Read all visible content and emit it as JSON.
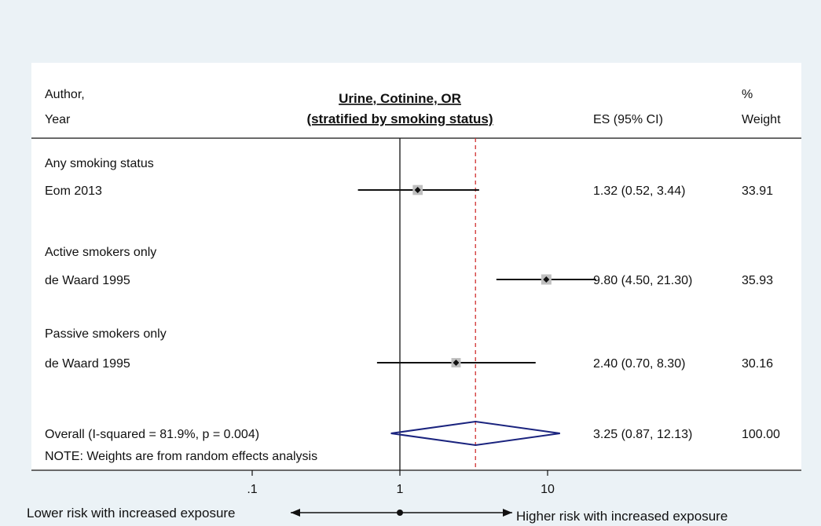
{
  "header": {
    "col1_line1": "Author,",
    "col1_line2": "Year",
    "title_line1": "Urine, Cotinine, OR",
    "title_line2": "(stratified by smoking status)",
    "es_header": "ES (95% CI)",
    "weight_line1": "%",
    "weight_line2": "Weight"
  },
  "footer": {
    "note": "NOTE: Weights are from random effects analysis",
    "lower_label": "Lower risk with increased exposure",
    "higher_label": "Higher risk with increased exposure"
  },
  "colors": {
    "diamond": "#1a237e",
    "reference_line": "#d03030",
    "ink": "#111111",
    "box": "#bfbfbf",
    "background": "#ebf2f6",
    "panel": "#ffffff"
  },
  "chart_data": {
    "type": "forest",
    "scale": "log",
    "xticks": [
      {
        "value": 0.1,
        "label": ".1"
      },
      {
        "value": 1,
        "label": "1"
      },
      {
        "value": 10,
        "label": "10"
      }
    ],
    "null_line": 1,
    "overall_line": 3.25,
    "rows": [
      {
        "kind": "subgroup",
        "label": "Any smoking status"
      },
      {
        "kind": "study",
        "label": "Eom 2013",
        "es": 1.32,
        "lo": 0.52,
        "hi": 3.44,
        "es_text": "1.32 (0.52, 3.44)",
        "weight": 33.91,
        "weight_text": "33.91"
      },
      {
        "kind": "subgroup",
        "label": "Active smokers only"
      },
      {
        "kind": "study",
        "label": "de Waard 1995",
        "es": 9.8,
        "lo": 4.5,
        "hi": 21.3,
        "es_text": "9.80 (4.50, 21.30)",
        "weight": 35.93,
        "weight_text": "35.93"
      },
      {
        "kind": "subgroup",
        "label": "Passive smokers only"
      },
      {
        "kind": "study",
        "label": "de Waard 1995",
        "es": 2.4,
        "lo": 0.7,
        "hi": 8.3,
        "es_text": "2.40 (0.70, 8.30)",
        "weight": 30.16,
        "weight_text": "30.16"
      },
      {
        "kind": "overall",
        "label": "Overall  (I-squared = 81.9%, p = 0.004)",
        "es": 3.25,
        "lo": 0.87,
        "hi": 12.13,
        "es_text": "3.25 (0.87, 12.13)",
        "weight": 100.0,
        "weight_text": "100.00"
      }
    ]
  }
}
